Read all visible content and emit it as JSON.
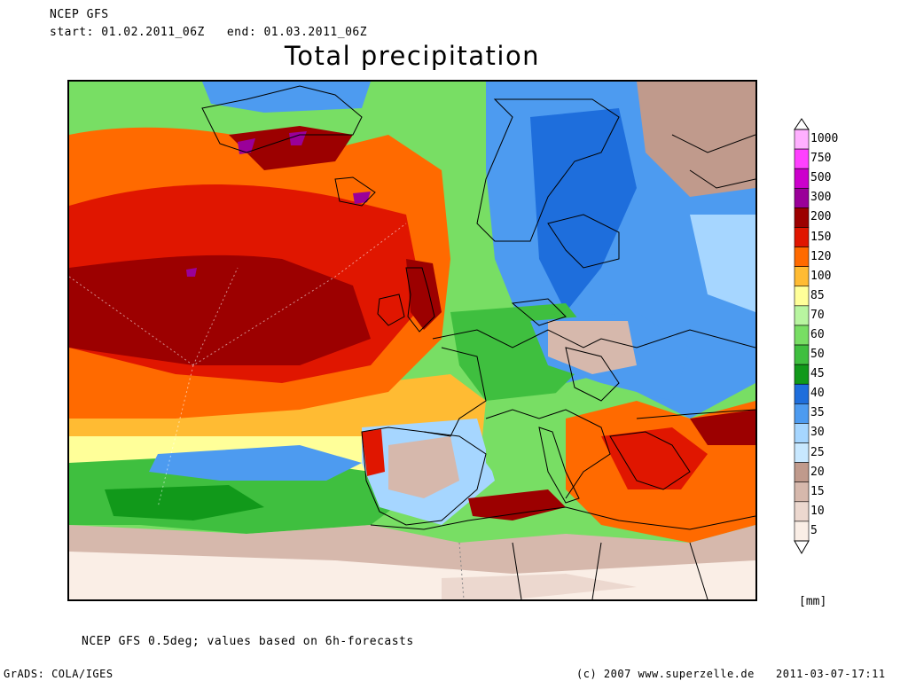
{
  "header": {
    "model": "NCEP GFS",
    "period": "start: 01.02.2011_06Z   end: 01.03.2011_06Z",
    "title": "Total precipitation"
  },
  "legend": {
    "units": "[mm]",
    "levels": [
      {
        "value": "1000",
        "color": "#ffb0ff"
      },
      {
        "value": "750",
        "color": "#ff40ff"
      },
      {
        "value": "500",
        "color": "#cc00cc"
      },
      {
        "value": "300",
        "color": "#9a0099"
      },
      {
        "value": "200",
        "color": "#9c0000"
      },
      {
        "value": "150",
        "color": "#e01600"
      },
      {
        "value": "120",
        "color": "#ff6a00"
      },
      {
        "value": "100",
        "color": "#ffbb33"
      },
      {
        "value": "85",
        "color": "#ffff99"
      },
      {
        "value": "70",
        "color": "#b8f5a0"
      },
      {
        "value": "60",
        "color": "#78de64"
      },
      {
        "value": "50",
        "color": "#3fbf3f"
      },
      {
        "value": "45",
        "color": "#11991a"
      },
      {
        "value": "40",
        "color": "#1e6edc"
      },
      {
        "value": "35",
        "color": "#4d9bf0"
      },
      {
        "value": "30",
        "color": "#a6d6ff"
      },
      {
        "value": "25",
        "color": "#c8e8ff"
      },
      {
        "value": "20",
        "color": "#c09a8c"
      },
      {
        "value": "15",
        "color": "#d6b8ac"
      },
      {
        "value": "10",
        "color": "#ecd8cf"
      },
      {
        "value": "5",
        "color": "#faeee6"
      }
    ]
  },
  "footer": {
    "note": "NCEP GFS 0.5deg; values based on 6h-forecasts",
    "software": "GrADS: COLA/IGES",
    "copyright": "(c) 2007 www.superzelle.de",
    "timestamp": "2011-03-07-17:11"
  }
}
